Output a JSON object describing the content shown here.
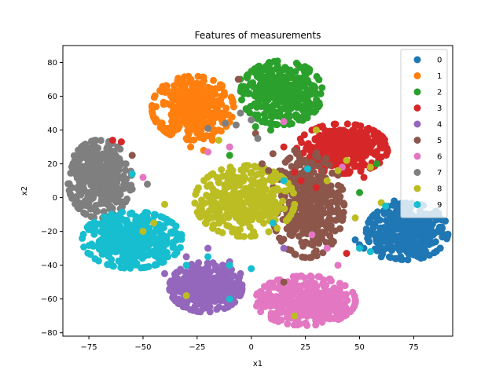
{
  "chart_data": {
    "type": "scatter",
    "title": "Features of measurements",
    "xlabel": "x1",
    "ylabel": "x2",
    "xlim": [
      -87,
      93
    ],
    "ylim": [
      -82,
      90
    ],
    "xticks": [
      -75,
      -50,
      -25,
      0,
      25,
      50,
      75
    ],
    "yticks": [
      -80,
      -60,
      -40,
      -20,
      0,
      20,
      40,
      60,
      80
    ],
    "grid": false,
    "legend_position": "top-right",
    "series": [
      {
        "name": "0",
        "color": "#1f77b4",
        "center": [
          72,
          -20
        ],
        "spread": [
          9,
          8
        ],
        "count": 380,
        "scatter_points": [
          [
            52,
            -30
          ],
          [
            58,
            -12
          ],
          [
            60,
            -35
          ],
          [
            63,
            -8
          ],
          [
            50,
            -28
          ],
          [
            66,
            -2
          ],
          [
            48,
            -25
          ]
        ]
      },
      {
        "name": "1",
        "color": "#ff7f0e",
        "center": [
          -27,
          53
        ],
        "spread": [
          9,
          9
        ],
        "count": 380,
        "scatter_points": [
          [
            -18,
            34
          ],
          [
            -22,
            28
          ],
          [
            -15,
            40
          ],
          [
            -28,
            30
          ],
          [
            -30,
            35
          ]
        ]
      },
      {
        "name": "2",
        "color": "#2ca02c",
        "center": [
          14,
          62
        ],
        "spread": [
          9,
          9
        ],
        "count": 380,
        "scatter_points": [
          [
            5,
            45
          ],
          [
            -5,
            70
          ],
          [
            2,
            42
          ],
          [
            9,
            40
          ],
          [
            -10,
            25
          ],
          [
            22,
            46
          ],
          [
            58,
            20
          ],
          [
            50,
            3
          ]
        ]
      },
      {
        "name": "3",
        "color": "#d62728",
        "center": [
          42,
          29
        ],
        "spread": [
          10,
          7
        ],
        "count": 380,
        "scatter_points": [
          [
            20,
            15
          ],
          [
            23,
            10
          ],
          [
            30,
            6
          ],
          [
            15,
            30
          ],
          [
            52,
            12
          ],
          [
            44,
            -33
          ],
          [
            -64,
            34
          ],
          [
            -60,
            33
          ]
        ]
      },
      {
        "name": "4",
        "color": "#9467bd",
        "center": [
          -21,
          -53
        ],
        "spread": [
          8,
          7
        ],
        "count": 380,
        "scatter_points": [
          [
            -30,
            -35
          ],
          [
            -10,
            -38
          ],
          [
            -40,
            -45
          ],
          [
            -20,
            -30
          ],
          [
            -5,
            -45
          ],
          [
            15,
            -30
          ]
        ]
      },
      {
        "name": "5",
        "color": "#8c564b",
        "center": [
          26,
          -4
        ],
        "spread": [
          8,
          15
        ],
        "count": 380,
        "scatter_points": [
          [
            8,
            16
          ],
          [
            10,
            26
          ],
          [
            -6,
            70
          ],
          [
            5,
            20
          ],
          [
            15,
            -50
          ],
          [
            20,
            28
          ],
          [
            -55,
            25
          ],
          [
            2,
            38
          ]
        ]
      },
      {
        "name": "6",
        "color": "#e377c2",
        "center": [
          25,
          -61
        ],
        "spread": [
          11,
          7
        ],
        "count": 380,
        "scatter_points": [
          [
            35,
            -30
          ],
          [
            28,
            -22
          ],
          [
            15,
            45
          ],
          [
            -10,
            30
          ],
          [
            -50,
            12
          ],
          [
            -20,
            27
          ],
          [
            42,
            18
          ],
          [
            40,
            -40
          ]
        ]
      },
      {
        "name": "7",
        "color": "#7f7f7f",
        "center": [
          -70,
          11
        ],
        "spread": [
          7,
          11
        ],
        "count": 380,
        "scatter_points": [
          [
            -5,
            50
          ],
          [
            -7,
            43
          ],
          [
            0,
            46
          ],
          [
            -48,
            8
          ],
          [
            -55,
            5
          ],
          [
            -20,
            41
          ],
          [
            -12,
            44
          ],
          [
            3,
            35
          ]
        ]
      },
      {
        "name": "8",
        "color": "#bcbd22",
        "center": [
          -3,
          -2
        ],
        "spread": [
          11,
          10
        ],
        "count": 380,
        "scatter_points": [
          [
            40,
            16
          ],
          [
            48,
            -12
          ],
          [
            35,
            10
          ],
          [
            60,
            -3
          ],
          [
            -45,
            -15
          ],
          [
            -40,
            -4
          ],
          [
            20,
            -70
          ],
          [
            -30,
            -58
          ],
          [
            55,
            18
          ],
          [
            30,
            40
          ],
          [
            -15,
            34
          ],
          [
            -50,
            -20
          ],
          [
            44,
            22
          ]
        ]
      },
      {
        "name": "9",
        "color": "#17becf",
        "center": [
          -55,
          -25
        ],
        "spread": [
          11,
          8
        ],
        "count": 380,
        "scatter_points": [
          [
            -20,
            -35
          ],
          [
            -10,
            -40
          ],
          [
            0,
            -42
          ],
          [
            10,
            -15
          ],
          [
            15,
            10
          ],
          [
            26,
            17
          ],
          [
            50,
            -30
          ],
          [
            55,
            -32
          ],
          [
            -10,
            -60
          ],
          [
            -55,
            14
          ],
          [
            62,
            -5
          ],
          [
            -30,
            -40
          ]
        ]
      }
    ]
  }
}
